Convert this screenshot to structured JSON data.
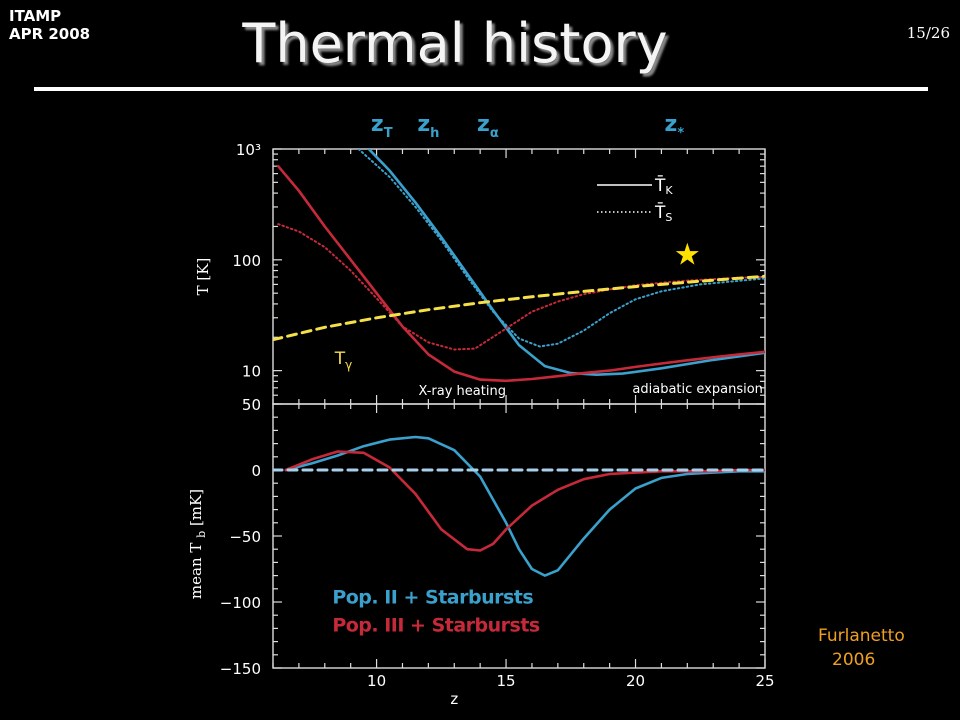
{
  "header": {
    "event_line1": "ITAMP",
    "event_line2": "APR 2008",
    "page_number": "15/26",
    "title": "Thermal history"
  },
  "credit": {
    "line1": "Furlanetto",
    "line2": "2006"
  },
  "colors": {
    "pop2": "#3aa0cc",
    "pop3": "#c62a3a",
    "t_gamma": "#f5e04a",
    "star": "#ffe000",
    "credit": "#f0a020",
    "baseline": "#a8d0ec"
  },
  "chart_data": [
    {
      "type": "line",
      "panel": "top",
      "ylabel": "T  [K]",
      "yscale": "log",
      "xlim": [
        6,
        25
      ],
      "ylim": [
        5,
        1000
      ],
      "y_ticks": [
        10,
        100,
        1000
      ],
      "y_tick_labels": [
        "10",
        "100",
        "10³"
      ],
      "x_ticks": [
        10,
        15,
        20,
        25
      ],
      "grid": false,
      "redshift_markers": [
        {
          "label": "z",
          "sub": "T",
          "x": 10.2
        },
        {
          "label": "z",
          "sub": "h",
          "x": 12.0
        },
        {
          "label": "z",
          "sub": "α",
          "x": 14.3
        },
        {
          "label": "z",
          "sub": "*",
          "x": 21.5
        }
      ],
      "legend": {
        "position": "top-right",
        "entries": [
          {
            "label": "T̄",
            "sub": "K",
            "style": "solid"
          },
          {
            "label": "T̄",
            "sub": "S",
            "style": "dotted"
          }
        ]
      },
      "annotations": [
        {
          "text": "X-ray heating",
          "position": "bottom-center"
        },
        {
          "text": "adiabatic expansion",
          "position": "bottom-right"
        },
        {
          "text": "T",
          "sub": "γ",
          "position": "near T-gamma curve"
        },
        {
          "text": "★",
          "x": 22.0,
          "y": 80
        }
      ],
      "series": [
        {
          "color_key": "pop2",
          "style": "solid",
          "x": [
            9.7,
            10.5,
            11.5,
            12.5,
            13.5,
            14.5,
            15.5,
            16.5,
            17.5,
            18.5,
            19.5,
            21,
            23,
            25
          ],
          "y": [
            1000,
            640,
            330,
            160,
            75,
            35,
            17,
            11,
            9.5,
            9.2,
            9.4,
            10.5,
            12.5,
            14.5
          ]
        },
        {
          "color_key": "pop2",
          "style": "dotted",
          "x": [
            9.3,
            10.5,
            11.5,
            12.5,
            13.5,
            14.5,
            15.5,
            16.3,
            17,
            18,
            19,
            20,
            21,
            22.5,
            25
          ],
          "y": [
            1000,
            560,
            300,
            150,
            70,
            34,
            19.5,
            16.5,
            17.5,
            23,
            33,
            44,
            52,
            60,
            68
          ]
        },
        {
          "color_key": "pop3",
          "style": "solid",
          "x": [
            6.2,
            7,
            8,
            9,
            10,
            11,
            12,
            13,
            14,
            15,
            16,
            17,
            18,
            19,
            20,
            21,
            22,
            23,
            24,
            25
          ],
          "y": [
            700,
            420,
            200,
            100,
            50,
            25,
            14,
            9.8,
            8.3,
            8.1,
            8.4,
            8.9,
            9.5,
            10,
            10.8,
            11.6,
            12.4,
            13.2,
            14,
            14.8
          ]
        },
        {
          "color_key": "pop3",
          "style": "dotted",
          "x": [
            6.2,
            7,
            8,
            9,
            10,
            11,
            12,
            13,
            13.8,
            15,
            16,
            17,
            18,
            19,
            20,
            21,
            22,
            23,
            24,
            25
          ],
          "y": [
            210,
            180,
            130,
            80,
            45,
            25,
            18,
            15.5,
            15.8,
            24,
            34,
            42,
            49,
            54,
            59,
            62,
            65,
            67,
            69,
            70
          ]
        },
        {
          "name": "T_γ",
          "color_key": "t_gamma",
          "style": "dashed",
          "x": [
            6,
            8,
            10,
            12,
            14,
            16,
            18,
            20,
            22,
            24,
            25
          ],
          "y": [
            19,
            24.6,
            30,
            35.5,
            41,
            46.4,
            51.9,
            57.3,
            62.8,
            68.2,
            71
          ]
        }
      ]
    },
    {
      "type": "line",
      "panel": "bottom",
      "xlabel": "z",
      "ylabel": "mean  T",
      "ylabel_sub": "b",
      "ylabel_unit": "[mK]",
      "xlim": [
        6,
        25
      ],
      "ylim": [
        -150,
        50
      ],
      "y_ticks": [
        50,
        0,
        -50,
        -100,
        -150
      ],
      "y_tick_labels": [
        "50",
        "0",
        "−50",
        "−100",
        "−150"
      ],
      "x_ticks": [
        10,
        15,
        20,
        25
      ],
      "x_tick_labels": [
        "10",
        "15",
        "20",
        "25"
      ],
      "grid": false,
      "legend": {
        "position": "bottom-left",
        "entries": [
          {
            "label": "Pop. II + Starbursts",
            "color_key": "pop2"
          },
          {
            "label": "Pop. III + Starbursts",
            "color_key": "pop3"
          }
        ]
      },
      "series": [
        {
          "name": "Pop. II + Starbursts",
          "color_key": "pop2",
          "style": "solid",
          "x": [
            6.5,
            7.5,
            8.5,
            9.5,
            10.5,
            11.5,
            12,
            13,
            14,
            15,
            15.5,
            16,
            16.5,
            17,
            18,
            19,
            20,
            21,
            22,
            23,
            24,
            25
          ],
          "y": [
            0,
            5,
            11,
            18,
            23,
            25,
            24,
            15,
            -5,
            -40,
            -60,
            -75,
            -80,
            -76,
            -52,
            -30,
            -14,
            -6,
            -3,
            -2,
            -1,
            -1
          ]
        },
        {
          "name": "Pop. III + Starbursts",
          "color_key": "pop3",
          "style": "solid",
          "x": [
            6.5,
            7.5,
            8.5,
            9.5,
            10.5,
            11.5,
            12.5,
            13.5,
            14,
            14.5,
            15,
            16,
            17,
            18,
            19,
            20,
            21,
            22,
            23,
            24,
            25
          ],
          "y": [
            0,
            8,
            14,
            13,
            2,
            -18,
            -45,
            -60,
            -61,
            -56,
            -45,
            -27,
            -15,
            -7,
            -3,
            -2,
            -1,
            -1,
            -1,
            0,
            0
          ]
        },
        {
          "color_key": "baseline",
          "style": "dashed",
          "x": [
            6,
            25
          ],
          "y": [
            0,
            0
          ]
        }
      ]
    }
  ]
}
